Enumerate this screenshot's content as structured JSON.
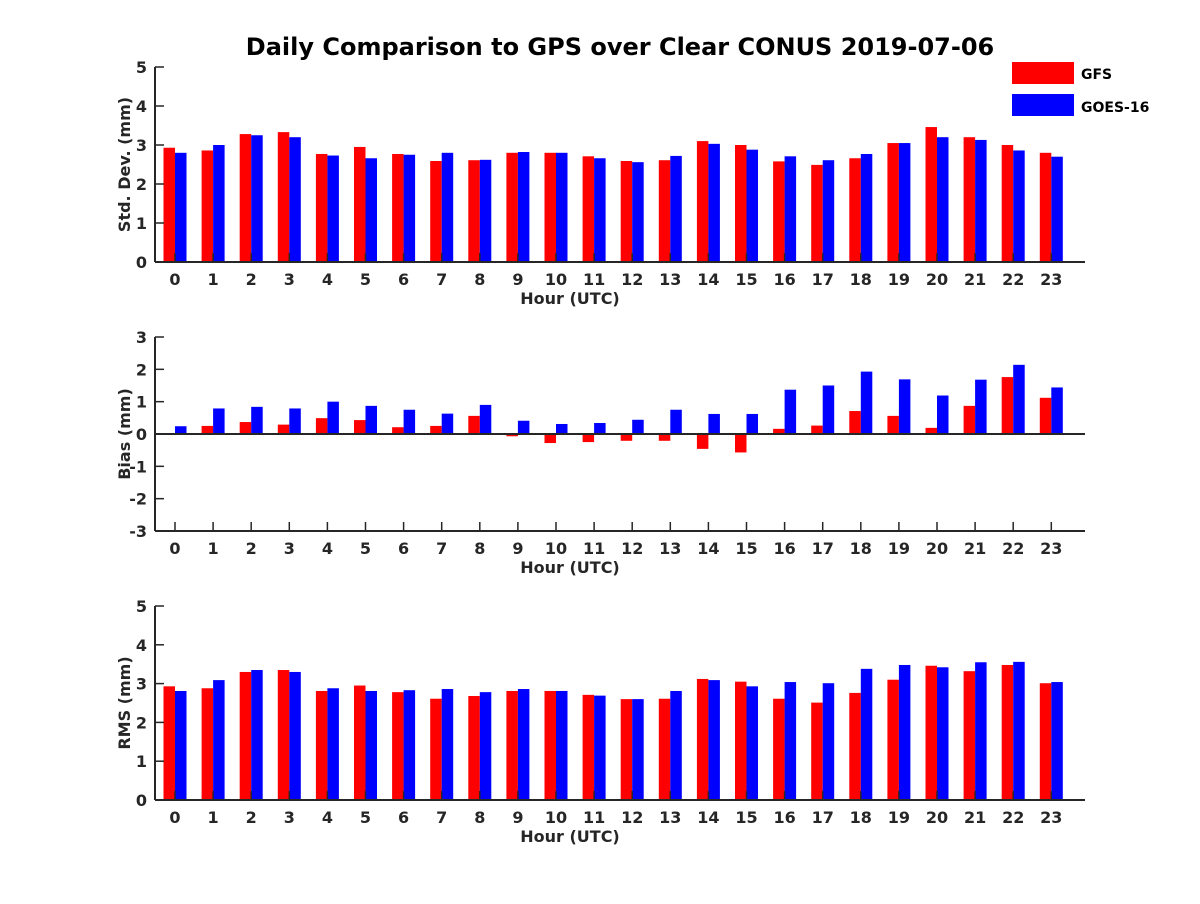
{
  "chart_data": {
    "type": "bar",
    "title": "Daily Comparison to GPS over Clear CONUS 2019-07-06",
    "legend": {
      "placement": "top-right",
      "entries": [
        {
          "name": "GFS",
          "color": "#ff0000"
        },
        {
          "name": "GOES-16",
          "color": "#0000ff"
        }
      ]
    },
    "categories": [
      "0",
      "1",
      "2",
      "3",
      "4",
      "5",
      "6",
      "7",
      "8",
      "9",
      "10",
      "11",
      "12",
      "13",
      "14",
      "15",
      "16",
      "17",
      "18",
      "19",
      "20",
      "21",
      "22",
      "23"
    ],
    "panels": [
      {
        "id": "std",
        "xlabel": "Hour (UTC)",
        "ylabel": "Std. Dev. (mm)",
        "ylim": [
          0,
          5
        ],
        "yticks": [
          0,
          1,
          2,
          3,
          4,
          5
        ],
        "series": [
          {
            "name": "GFS",
            "values": [
              2.93,
              2.86,
              3.28,
              3.33,
              2.77,
              2.95,
              2.77,
              2.59,
              2.61,
              2.8,
              2.8,
              2.71,
              2.59,
              2.61,
              3.1,
              3.0,
              2.58,
              2.49,
              2.66,
              3.05,
              3.46,
              3.2,
              3.0,
              2.8
            ]
          },
          {
            "name": "GOES-16",
            "values": [
              2.8,
              3.0,
              3.25,
              3.2,
              2.73,
              2.66,
              2.75,
              2.8,
              2.62,
              2.82,
              2.8,
              2.66,
              2.56,
              2.72,
              3.03,
              2.88,
              2.71,
              2.61,
              2.77,
              3.05,
              3.2,
              3.13,
              2.86,
              2.7
            ]
          }
        ]
      },
      {
        "id": "bias",
        "xlabel": "Hour (UTC)",
        "ylabel": "Bias (mm)",
        "ylim": [
          -3,
          3
        ],
        "yticks": [
          -3,
          -2,
          -1,
          0,
          1,
          2,
          3
        ],
        "series": [
          {
            "name": "GFS",
            "values": [
              0.0,
              0.25,
              0.37,
              0.29,
              0.49,
              0.43,
              0.21,
              0.25,
              0.56,
              -0.07,
              -0.28,
              -0.25,
              -0.21,
              -0.21,
              -0.46,
              -0.57,
              0.16,
              0.26,
              0.71,
              0.56,
              0.19,
              0.87,
              1.76,
              1.12
            ]
          },
          {
            "name": "GOES-16",
            "values": [
              0.24,
              0.79,
              0.84,
              0.79,
              1.0,
              0.87,
              0.75,
              0.63,
              0.9,
              0.41,
              0.31,
              0.34,
              0.44,
              0.75,
              0.62,
              0.62,
              1.37,
              1.5,
              1.93,
              1.69,
              1.19,
              1.68,
              2.14,
              1.44
            ]
          }
        ]
      },
      {
        "id": "rms",
        "xlabel": "Hour (UTC)",
        "ylabel": "RMS (mm)",
        "ylim": [
          0,
          5
        ],
        "yticks": [
          0,
          1,
          2,
          3,
          4,
          5
        ],
        "series": [
          {
            "name": "GFS",
            "values": [
              2.93,
              2.88,
              3.3,
              3.35,
              2.81,
              2.95,
              2.78,
              2.61,
              2.68,
              2.81,
              2.81,
              2.71,
              2.6,
              2.61,
              3.12,
              3.05,
              2.61,
              2.51,
              2.76,
              3.1,
              3.46,
              3.32,
              3.48,
              3.01
            ]
          },
          {
            "name": "GOES-16",
            "values": [
              2.81,
              3.09,
              3.35,
              3.3,
              2.88,
              2.81,
              2.83,
              2.86,
              2.78,
              2.86,
              2.81,
              2.69,
              2.6,
              2.81,
              3.09,
              2.93,
              3.04,
              3.01,
              3.38,
              3.48,
              3.42,
              3.55,
              3.56,
              3.04
            ]
          }
        ]
      }
    ]
  }
}
